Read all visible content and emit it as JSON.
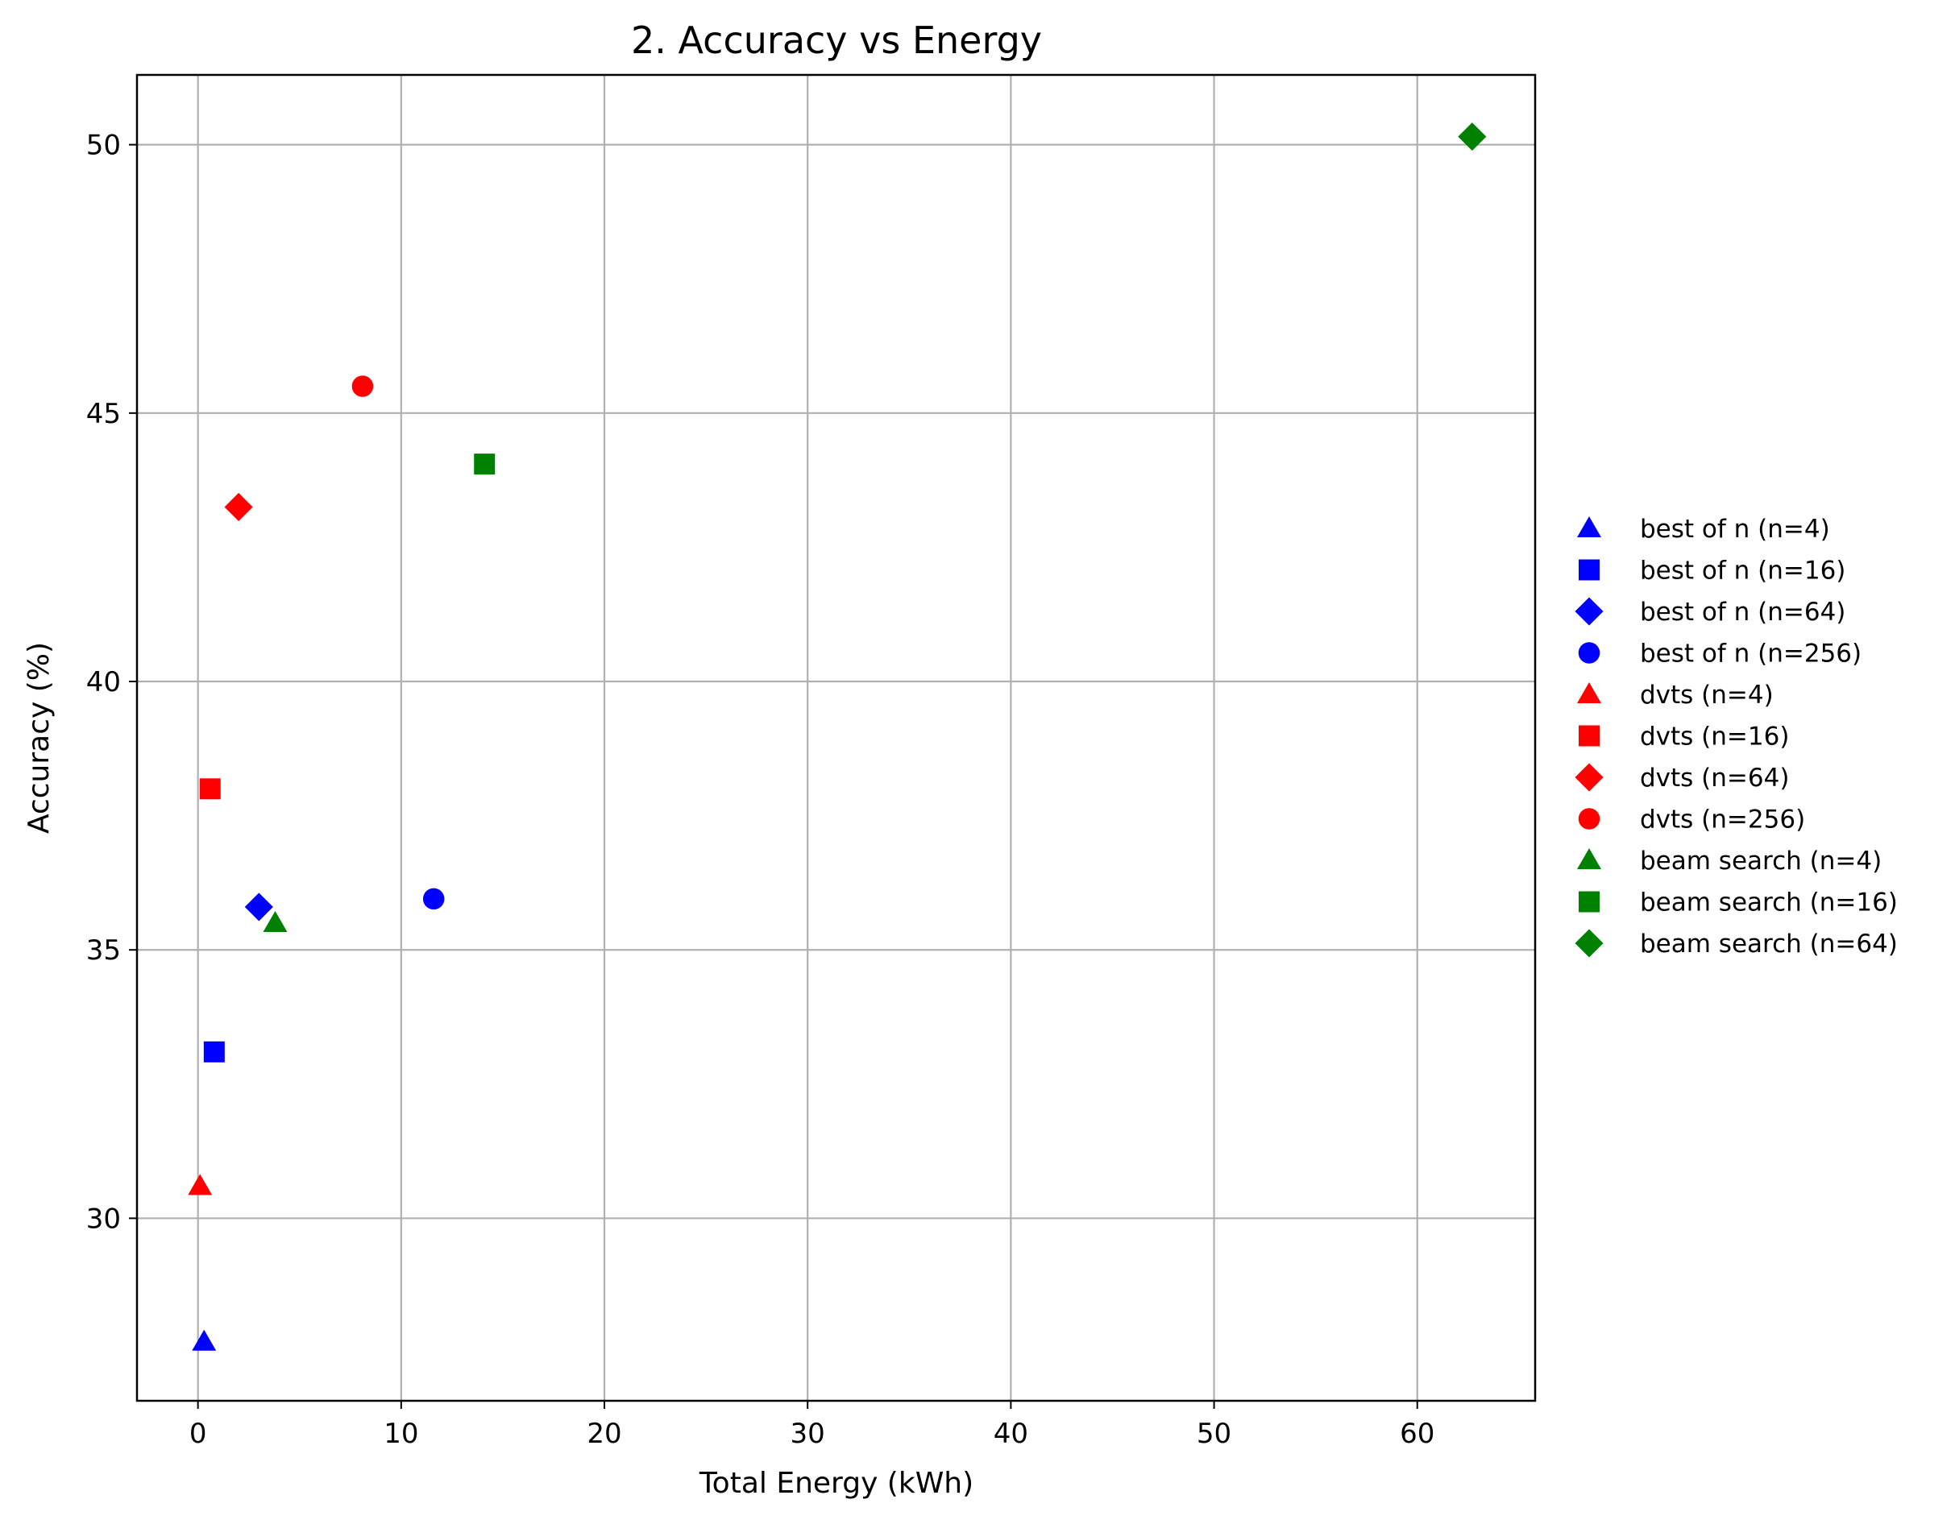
{
  "chart_data": {
    "type": "scatter",
    "title": "2. Accuracy vs Energy",
    "xlabel": "Total Energy (kWh)",
    "ylabel": "Accuracy (%)",
    "xlim": [
      -3.0,
      65.8
    ],
    "ylim": [
      26.6,
      51.3
    ],
    "xticks": [
      0,
      10,
      20,
      30,
      40,
      50,
      60
    ],
    "yticks": [
      30,
      35,
      40,
      45,
      50
    ],
    "grid": true,
    "legend_position": "outside-right",
    "series": [
      {
        "name": "best of n (n=4)",
        "color": "#0000ff",
        "marker": "triangle",
        "x": [
          0.3
        ],
        "y": [
          27.7
        ]
      },
      {
        "name": "best of n (n=16)",
        "color": "#0000ff",
        "marker": "square",
        "x": [
          0.8
        ],
        "y": [
          33.1
        ]
      },
      {
        "name": "best of n (n=64)",
        "color": "#0000ff",
        "marker": "diamond",
        "x": [
          3.0
        ],
        "y": [
          35.8
        ]
      },
      {
        "name": "best of n (n=256)",
        "color": "#0000ff",
        "marker": "circle",
        "x": [
          11.6
        ],
        "y": [
          35.95
        ]
      },
      {
        "name": "dvts (n=4)",
        "color": "#ff0000",
        "marker": "triangle",
        "x": [
          0.1
        ],
        "y": [
          30.6
        ]
      },
      {
        "name": "dvts (n=16)",
        "color": "#ff0000",
        "marker": "square",
        "x": [
          0.6
        ],
        "y": [
          38.0
        ]
      },
      {
        "name": "dvts (n=64)",
        "color": "#ff0000",
        "marker": "diamond",
        "x": [
          2.0
        ],
        "y": [
          43.25
        ]
      },
      {
        "name": "dvts (n=256)",
        "color": "#ff0000",
        "marker": "circle",
        "x": [
          8.1
        ],
        "y": [
          45.5
        ]
      },
      {
        "name": "beam search (n=4)",
        "color": "#008000",
        "marker": "triangle",
        "x": [
          3.8
        ],
        "y": [
          35.5
        ]
      },
      {
        "name": "beam search (n=16)",
        "color": "#008000",
        "marker": "square",
        "x": [
          14.1
        ],
        "y": [
          44.05
        ]
      },
      {
        "name": "beam search (n=64)",
        "color": "#008000",
        "marker": "diamond",
        "x": [
          62.7
        ],
        "y": [
          50.15
        ]
      }
    ]
  }
}
